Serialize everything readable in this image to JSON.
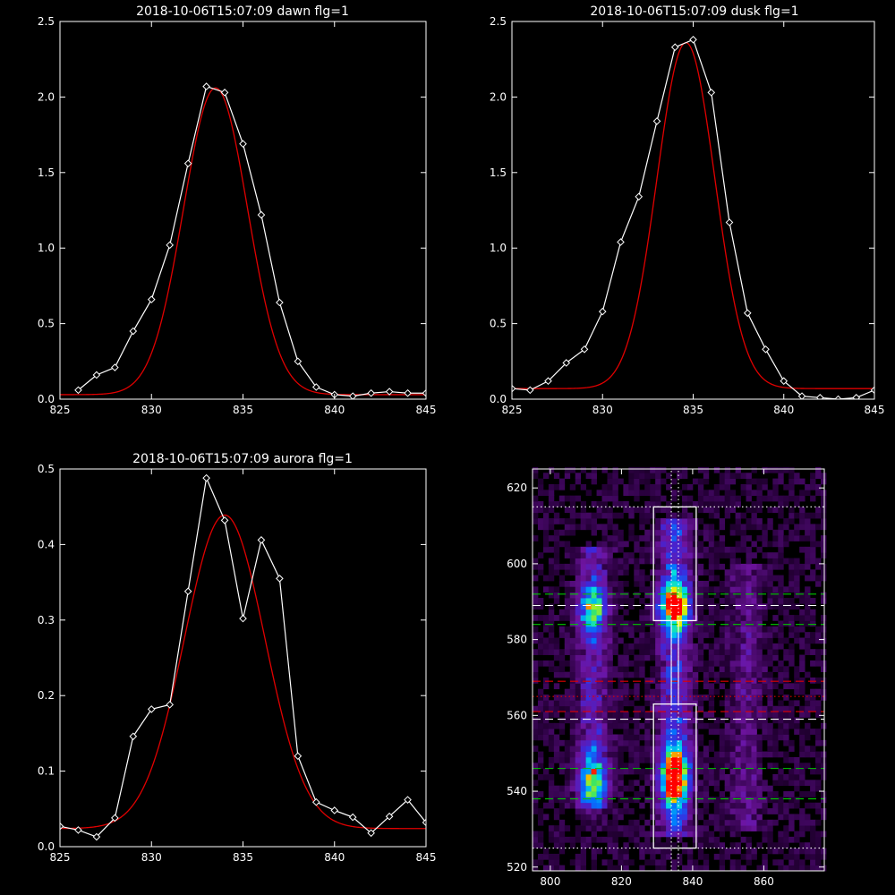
{
  "chart_data": [
    {
      "type": "line",
      "title": "2018-10-06T15:07:09 dawn flg=1",
      "xlim": [
        825,
        845
      ],
      "ylim": [
        0,
        2.5
      ],
      "xticks": [
        "825",
        "830",
        "835",
        "840",
        "845"
      ],
      "yticks": [
        "0.0",
        "0.5",
        "1.0",
        "1.5",
        "2.0",
        "2.5"
      ],
      "series": [
        {
          "color": "#ffffff",
          "marker": "diamond",
          "x": [
            826,
            827,
            828,
            829,
            830,
            831,
            832,
            833,
            834,
            835,
            836,
            837,
            838,
            839,
            840,
            841,
            842,
            843,
            844,
            845
          ],
          "y": [
            0.06,
            0.16,
            0.21,
            0.45,
            0.66,
            1.02,
            1.56,
            2.07,
            2.03,
            1.69,
            1.22,
            0.64,
            0.25,
            0.08,
            0.03,
            0.02,
            0.04,
            0.05,
            0.04,
            0.04
          ]
        },
        {
          "color": "#e00000",
          "fit": "gaussian",
          "amplitude": 2.03,
          "center": 833.5,
          "sigma": 1.75,
          "offset": 0.03
        }
      ]
    },
    {
      "type": "line",
      "title": "2018-10-06T15:07:09 dusk flg=1",
      "xlim": [
        825,
        845
      ],
      "ylim": [
        0,
        2.5
      ],
      "xticks": [
        "825",
        "830",
        "835",
        "840",
        "845"
      ],
      "yticks": [
        "0.0",
        "0.5",
        "1.0",
        "1.5",
        "2.0",
        "2.5"
      ],
      "series": [
        {
          "color": "#ffffff",
          "marker": "diamond",
          "x": [
            825,
            826,
            827,
            828,
            829,
            830,
            831,
            832,
            833,
            834,
            835,
            836,
            837,
            838,
            839,
            840,
            841,
            842,
            843,
            844,
            845
          ],
          "y": [
            0.07,
            0.06,
            0.12,
            0.24,
            0.33,
            0.58,
            1.04,
            1.34,
            1.84,
            2.33,
            2.38,
            2.03,
            1.17,
            0.57,
            0.33,
            0.12,
            0.02,
            0.01,
            0.0,
            0.01,
            0.06
          ]
        },
        {
          "color": "#e00000",
          "fit": "gaussian",
          "amplitude": 2.29,
          "center": 834.6,
          "sigma": 1.6,
          "offset": 0.07
        }
      ]
    },
    {
      "type": "line",
      "title": "2018-10-06T15:07:09 aurora flg=1",
      "xlim": [
        825,
        845
      ],
      "ylim": [
        0,
        0.5
      ],
      "xticks": [
        "825",
        "830",
        "835",
        "840",
        "845"
      ],
      "yticks": [
        "0.0",
        "0.1",
        "0.2",
        "0.3",
        "0.4",
        "0.5"
      ],
      "series": [
        {
          "color": "#ffffff",
          "marker": "diamond",
          "x": [
            825,
            826,
            827,
            828,
            829,
            830,
            831,
            832,
            833,
            834,
            835,
            836,
            837,
            838,
            839,
            840,
            841,
            842,
            843,
            844,
            845
          ],
          "y": [
            0.027,
            0.022,
            0.013,
            0.038,
            0.146,
            0.182,
            0.188,
            0.338,
            0.488,
            0.432,
            0.302,
            0.406,
            0.355,
            0.12,
            0.059,
            0.048,
            0.039,
            0.018,
            0.04,
            0.062,
            0.032
          ]
        },
        {
          "color": "#e00000",
          "fit": "gaussian",
          "amplitude": 0.415,
          "center": 834.0,
          "sigma": 2.2,
          "offset": 0.024
        }
      ]
    },
    {
      "type": "heatmap",
      "title": "",
      "xlim": [
        795,
        877
      ],
      "ylim": [
        519,
        625
      ],
      "xticks": [
        "800",
        "820",
        "840",
        "860"
      ],
      "yticks": [
        "520",
        "540",
        "560",
        "580",
        "600",
        "620"
      ],
      "blobs": [
        {
          "x": 812,
          "y": 588,
          "sx": 2.5,
          "sy": 4,
          "amp": 0.55
        },
        {
          "x": 812,
          "y": 543,
          "sx": 2.5,
          "sy": 5,
          "amp": 0.55
        },
        {
          "x": 835,
          "y": 589,
          "sx": 2.5,
          "sy": 4,
          "amp": 1.0
        },
        {
          "x": 835,
          "y": 544,
          "sx": 2.5,
          "sy": 5,
          "amp": 1.0
        }
      ],
      "bands": [
        {
          "x": 812,
          "y0": 536,
          "y1": 605,
          "sx": 3,
          "amp": 0.22
        },
        {
          "x": 835,
          "y0": 528,
          "y1": 612,
          "sx": 3,
          "amp": 0.3
        },
        {
          "x": 855,
          "y0": 530,
          "y1": 600,
          "sx": 3,
          "amp": 0.13
        }
      ],
      "overlays": {
        "boxes": [
          {
            "x0": 829,
            "x1": 841,
            "y0": 585,
            "y1": 615,
            "color": "#ffffff"
          },
          {
            "x0": 829,
            "x1": 841,
            "y0": 525,
            "y1": 563,
            "color": "#ffffff"
          }
        ],
        "vlines": [
          {
            "x": 834,
            "y0": 563,
            "y1": 585,
            "color": "#ffffff",
            "style": "solid"
          },
          {
            "x": 836,
            "y0": 563,
            "y1": 585,
            "color": "#ffffff",
            "style": "solid"
          },
          {
            "x": 834,
            "y0": 519,
            "y1": 625,
            "color": "#ffffff",
            "style": "dotted"
          },
          {
            "x": 836,
            "y0": 519,
            "y1": 625,
            "color": "#ffffff",
            "style": "dotted"
          }
        ],
        "hlines": [
          {
            "y": 615,
            "color": "#ffffff",
            "style": "dotted"
          },
          {
            "y": 592,
            "color": "#00c800",
            "style": "dashed"
          },
          {
            "y": 589,
            "color": "#ffffff",
            "style": "dashed"
          },
          {
            "y": 584,
            "color": "#00c800",
            "style": "dashed"
          },
          {
            "y": 569,
            "color": "#e00000",
            "style": "dashed"
          },
          {
            "y": 565,
            "color": "#e00000",
            "style": "dotted"
          },
          {
            "y": 561,
            "color": "#e00000",
            "style": "dashed"
          },
          {
            "y": 559,
            "color": "#ffffff",
            "style": "dashed"
          },
          {
            "y": 546,
            "color": "#00c800",
            "style": "dashed"
          },
          {
            "y": 538,
            "color": "#00c800",
            "style": "dashed"
          },
          {
            "y": 525,
            "color": "#ffffff",
            "style": "dotted"
          }
        ]
      }
    }
  ]
}
